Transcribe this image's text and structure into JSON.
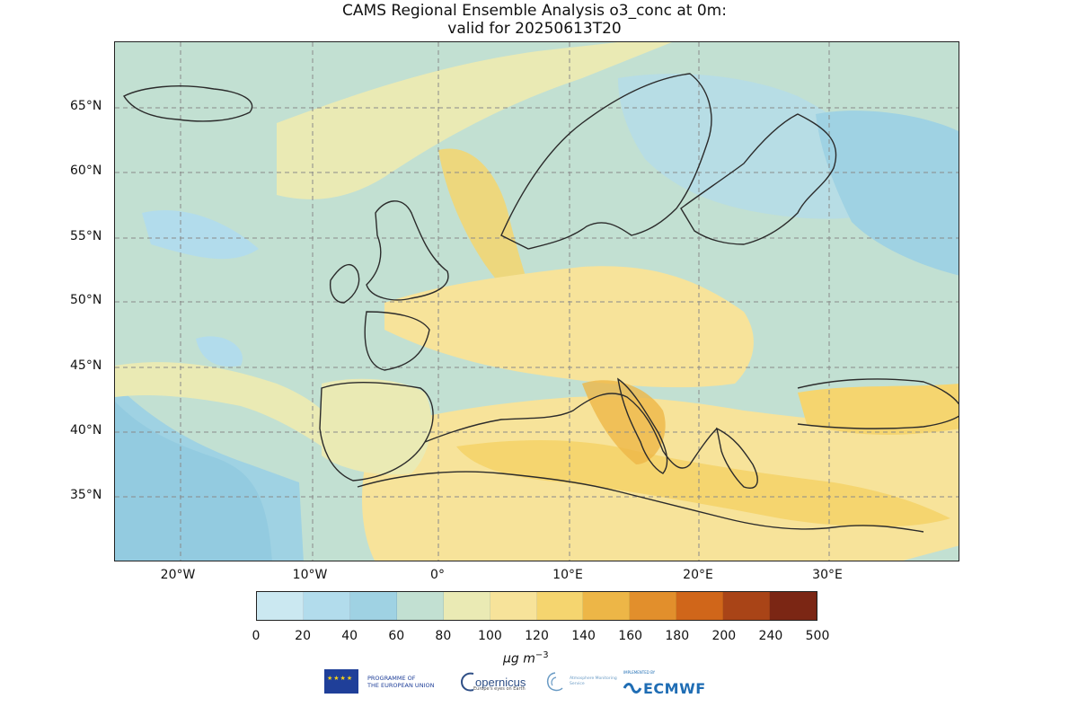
{
  "title": {
    "line1": "CAMS Regional Ensemble Analysis o3_conc at 0m:",
    "line2": "valid for 20250613T20"
  },
  "map": {
    "projection": "PlateCarree",
    "lon_range": [
      -25,
      39
    ],
    "lat_range": [
      30,
      70
    ],
    "gridlines": true,
    "lat_tick_labels": [
      "65°N",
      "60°N",
      "55°N",
      "50°N",
      "45°N",
      "40°N",
      "35°N"
    ],
    "lon_tick_labels": [
      "20°W",
      "10°W",
      "0°",
      "10°E",
      "20°E",
      "30°E"
    ]
  },
  "colorbar": {
    "levels": [
      "0",
      "20",
      "40",
      "60",
      "80",
      "100",
      "120",
      "140",
      "160",
      "180",
      "200",
      "240",
      "500"
    ],
    "colors": [
      "#cbe8f1",
      "#b2dcec",
      "#9fd2e3",
      "#c2e0d2",
      "#eaeab4",
      "#f7e39a",
      "#f5d56f",
      "#edb647",
      "#e28f2c",
      "#d0661a",
      "#a94417",
      "#7b2614"
    ],
    "units": "µg m",
    "units_exp": "−3"
  },
  "logos": {
    "eu_line1": "PROGRAMME OF",
    "eu_line2": "THE EUROPEAN UNION",
    "copernicus": "opernicus",
    "copernicus_sub": "Europe's eyes on Earth",
    "cams": "Atmosphere Monitoring Service",
    "ecmwf_sub": "IMPLEMENTED BY",
    "ecmwf": "ECMWF"
  }
}
